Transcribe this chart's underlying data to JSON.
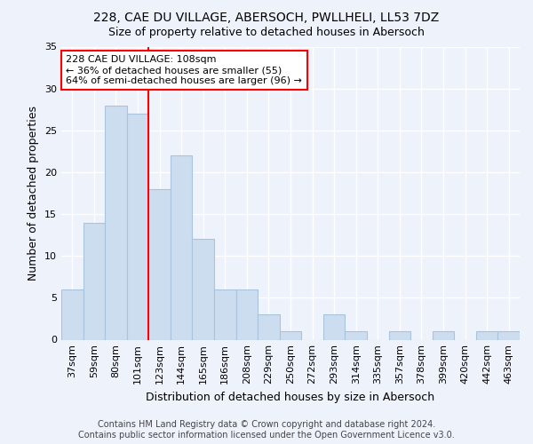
{
  "title1": "228, CAE DU VILLAGE, ABERSOCH, PWLLHELI, LL53 7DZ",
  "title2": "Size of property relative to detached houses in Abersoch",
  "xlabel": "Distribution of detached houses by size in Abersoch",
  "ylabel": "Number of detached properties",
  "categories": [
    "37sqm",
    "59sqm",
    "80sqm",
    "101sqm",
    "123sqm",
    "144sqm",
    "165sqm",
    "186sqm",
    "208sqm",
    "229sqm",
    "250sqm",
    "272sqm",
    "293sqm",
    "314sqm",
    "335sqm",
    "357sqm",
    "378sqm",
    "399sqm",
    "420sqm",
    "442sqm",
    "463sqm"
  ],
  "values": [
    6,
    14,
    28,
    27,
    18,
    22,
    12,
    6,
    6,
    3,
    1,
    0,
    3,
    1,
    0,
    1,
    0,
    1,
    0,
    1,
    1
  ],
  "bar_color": "#ccddf0",
  "bar_edge_color": "#a8c4dc",
  "vline_x_index": 3,
  "vline_color": "red",
  "annotation_text": "228 CAE DU VILLAGE: 108sqm\n← 36% of detached houses are smaller (55)\n64% of semi-detached houses are larger (96) →",
  "annotation_box_color": "white",
  "annotation_box_edge_color": "red",
  "ylim": [
    0,
    35
  ],
  "yticks": [
    0,
    5,
    10,
    15,
    20,
    25,
    30,
    35
  ],
  "footer1": "Contains HM Land Registry data © Crown copyright and database right 2024.",
  "footer2": "Contains public sector information licensed under the Open Government Licence v3.0.",
  "bg_color": "#eef2fb",
  "grid_color": "#ffffff",
  "title_fontsize": 10,
  "subtitle_fontsize": 9,
  "axis_label_fontsize": 9,
  "tick_fontsize": 8,
  "footer_fontsize": 7,
  "ann_fontsize": 8
}
